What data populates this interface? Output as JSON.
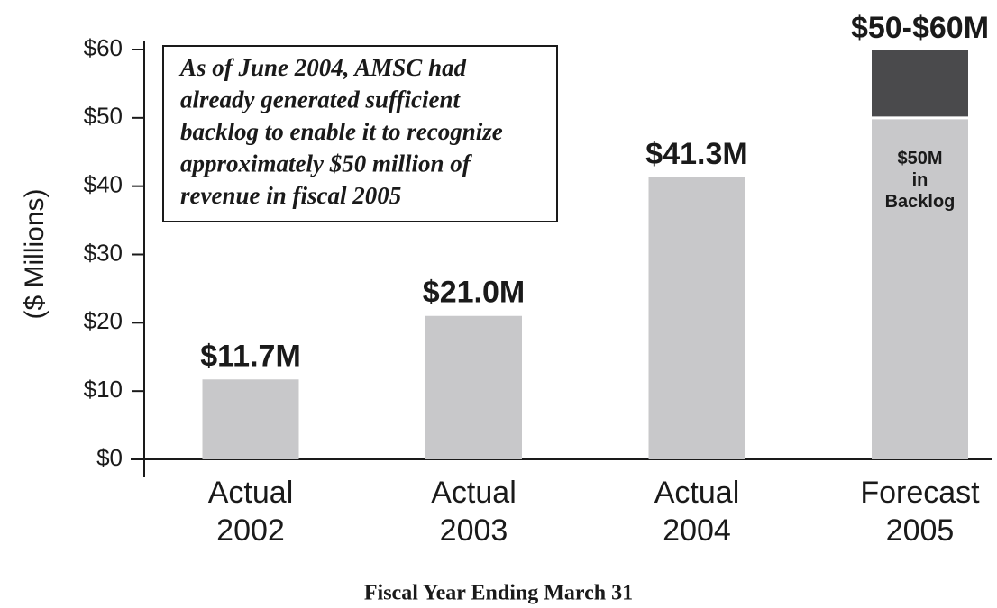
{
  "chart_data": {
    "type": "bar",
    "stacked": true,
    "ylabel": "($ Millions)",
    "xlabel": "Fiscal Year Ending March 31",
    "annotation": [
      "As of June 2004, AMSC had",
      "already generated sufficient",
      "backlog to enable it to recognize",
      "approximately $50 million of",
      "revenue in fiscal 2005"
    ],
    "range_label": "$50-$60M",
    "categories": [
      "Actual 2002",
      "Actual 2003",
      "Actual 2004",
      "Forecast 2005"
    ],
    "series": [
      {
        "color": "#c8c8ca",
        "values": [
          11.7,
          21.0,
          41.3,
          50
        ],
        "value_labels": [
          "$11.7M",
          "$21.0M",
          "$41.3M",
          "$50M in Backlog"
        ]
      },
      {
        "color": "#4a4a4c",
        "values": [
          null,
          null,
          null,
          10
        ]
      }
    ],
    "ylim": [
      0,
      60
    ],
    "yticks": [
      {
        "value": 0,
        "label": "$0"
      },
      {
        "value": 10,
        "label": "$10"
      },
      {
        "value": 20,
        "label": "$20"
      },
      {
        "value": 30,
        "label": "$30"
      },
      {
        "value": 40,
        "label": "$40"
      },
      {
        "value": 50,
        "label": "$50"
      },
      {
        "value": 60,
        "label": "$60"
      }
    ]
  }
}
